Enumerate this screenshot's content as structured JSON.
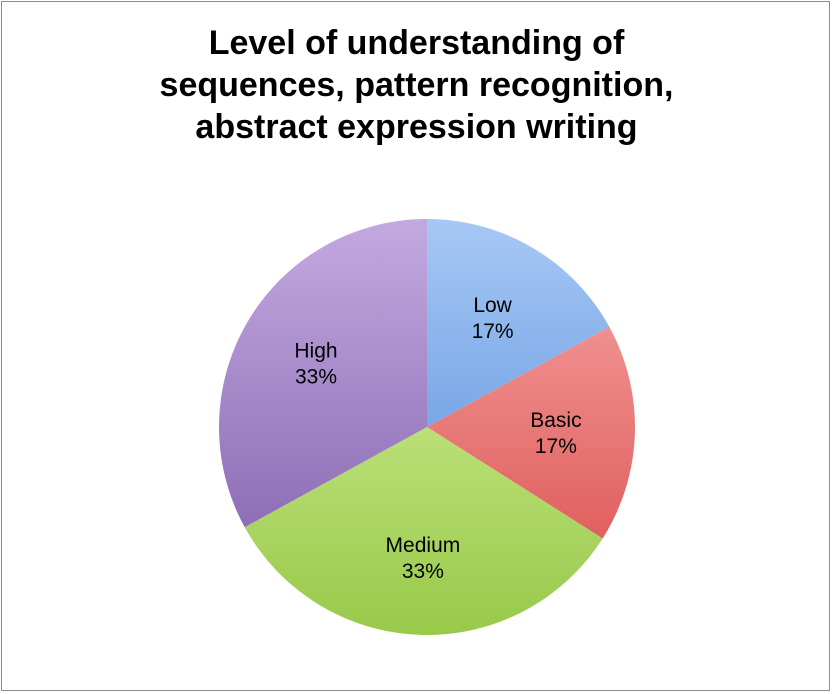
{
  "chart_data": {
    "type": "pie",
    "title": [
      "Level of understanding of",
      "sequences, pattern recognition,",
      "abstract expression writing"
    ],
    "categories": [
      "Low",
      "Basic",
      "Medium",
      "High"
    ],
    "values": [
      17,
      17,
      33,
      33
    ],
    "value_labels": [
      "17%",
      "17%",
      "33%",
      "33%"
    ],
    "colors": {
      "Low": {
        "light": "#a7c8f5",
        "dark": "#4a86d6"
      },
      "Basic": {
        "light": "#f7a9a9",
        "dark": "#d94a48"
      },
      "Medium": {
        "light": "#dcf6a4",
        "dark": "#98c94a"
      },
      "High": {
        "light": "#c4a9e0",
        "dark": "#7a5aa8"
      }
    },
    "start_angle": "12 o'clock",
    "direction": "clockwise",
    "legend": "none",
    "data_labels": "inside"
  }
}
